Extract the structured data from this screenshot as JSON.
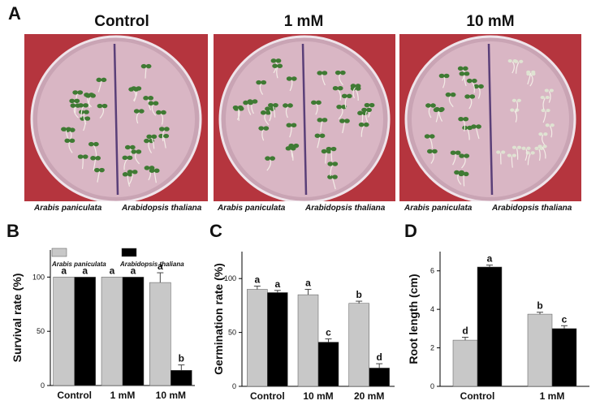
{
  "panel_a": {
    "letter": "A",
    "conditions": [
      "Control",
      "1 mM",
      "10 mM"
    ],
    "species_left": "Arabis paniculata",
    "species_right": "Arabidopsis thaliana",
    "colors": {
      "background": "#b5353e",
      "dish": "#d9b6c4",
      "divider": "#5a3f78",
      "seedling_green": "#3f7a33",
      "seedling_pale": "#dfe3d2"
    }
  },
  "chart_data": [
    {
      "panel": "B",
      "type": "bar",
      "ylabel": "Survival rate (%)",
      "ylim": [
        0,
        125
      ],
      "yticks": [
        0,
        50,
        100
      ],
      "categories": [
        "Control",
        "1 mM",
        "10 mM"
      ],
      "legend": [
        "Arabis paniculata",
        "Arabidopsis thaliana"
      ],
      "series": [
        {
          "name": "Arabis paniculata",
          "color": "#c8c8c8",
          "values": [
            100,
            100,
            95
          ],
          "errors": [
            0,
            0,
            9
          ],
          "letters": [
            "a",
            "a",
            "a"
          ]
        },
        {
          "name": "Arabidopsis thaliana",
          "color": "#000000",
          "values": [
            100,
            100,
            14
          ],
          "errors": [
            0,
            0,
            5
          ],
          "letters": [
            "a",
            "a",
            "b"
          ]
        }
      ]
    },
    {
      "panel": "C",
      "type": "bar",
      "ylabel": "Germination rate (%)",
      "ylim": [
        0,
        125
      ],
      "yticks": [
        0,
        50,
        100
      ],
      "categories": [
        "Control",
        "10 mM",
        "20 mM"
      ],
      "series": [
        {
          "name": "Arabis paniculata",
          "color": "#c8c8c8",
          "values": [
            90,
            85,
            77
          ],
          "errors": [
            3,
            5,
            2
          ],
          "letters": [
            "a",
            "a",
            "b"
          ]
        },
        {
          "name": "Arabidopsis thaliana",
          "color": "#000000",
          "values": [
            87,
            41,
            17
          ],
          "errors": [
            2,
            3,
            4
          ],
          "letters": [
            "a",
            "c",
            "d"
          ]
        }
      ]
    },
    {
      "panel": "D",
      "type": "bar",
      "ylabel": "Root length (cm)",
      "ylim": [
        0,
        7
      ],
      "yticks": [
        0,
        2,
        4,
        6
      ],
      "categories": [
        "Control",
        "1 mM"
      ],
      "series": [
        {
          "name": "Arabis paniculata",
          "color": "#c8c8c8",
          "values": [
            2.4,
            3.75
          ],
          "errors": [
            0.15,
            0.1
          ],
          "letters": [
            "d",
            "b"
          ]
        },
        {
          "name": "Arabidopsis thaliana",
          "color": "#000000",
          "values": [
            6.2,
            3.0
          ],
          "errors": [
            0.1,
            0.15
          ],
          "letters": [
            "a",
            "c"
          ]
        }
      ]
    }
  ]
}
